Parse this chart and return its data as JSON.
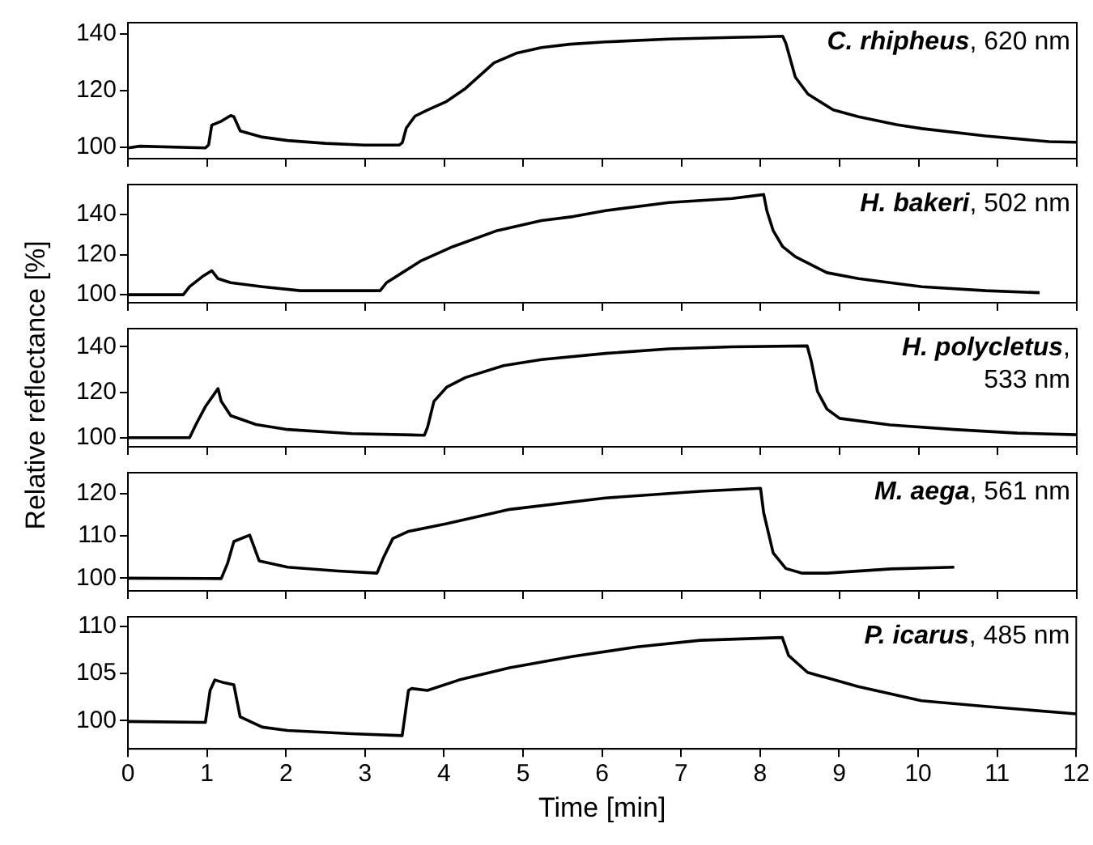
{
  "chart_data": [
    {
      "type": "line",
      "color": "#000000",
      "annotations": [
        "C. rhipheus, 620 nm"
      ],
      "xlim": [
        0,
        12
      ],
      "xticks": [
        0,
        1,
        2,
        3,
        4,
        5,
        6,
        7,
        8,
        9,
        10,
        11,
        12
      ],
      "ylim": [
        96,
        144
      ],
      "yticks": [
        100,
        120,
        140
      ],
      "tick_labels": "y",
      "x": [
        0,
        0.15,
        0.98,
        1.02,
        1.06,
        1.18,
        1.3,
        1.34,
        1.42,
        1.7,
        2.02,
        2.5,
        2.99,
        3.43,
        3.47,
        3.52,
        3.63,
        3.79,
        4.03,
        4.27,
        4.43,
        4.63,
        4.91,
        5.23,
        5.59,
        6.04,
        6.84,
        7.64,
        8.04,
        8.28,
        8.32,
        8.44,
        8.6,
        8.92,
        9.24,
        9.72,
        10.04,
        10.85,
        11.65,
        12
      ],
      "values": [
        99.8,
        100.4,
        99.8,
        100.8,
        107.8,
        109.2,
        111.2,
        110.8,
        105.8,
        103.6,
        102.4,
        101.4,
        100.8,
        100.8,
        101.6,
        106.8,
        111,
        113.2,
        116.2,
        120.8,
        124.8,
        129.8,
        133.2,
        135.2,
        136.4,
        137.2,
        138.2,
        138.8,
        139,
        139.2,
        136.8,
        124.8,
        118.8,
        113.2,
        110.8,
        108,
        106.6,
        104,
        102,
        101.8
      ]
    },
    {
      "type": "line",
      "color": "#000000",
      "annotations": [
        "H. bakeri, 502 nm"
      ],
      "xlim": [
        0,
        12
      ],
      "xticks": [
        0,
        1,
        2,
        3,
        4,
        5,
        6,
        7,
        8,
        9,
        10,
        11,
        12
      ],
      "ylim": [
        96,
        155
      ],
      "yticks": [
        100,
        120,
        140
      ],
      "tick_labels": "y",
      "x": [
        0,
        0.7,
        0.78,
        0.94,
        1.06,
        1.14,
        1.3,
        1.7,
        2.18,
        3.19,
        3.27,
        3.47,
        3.71,
        4.11,
        4.67,
        5.23,
        5.63,
        6.04,
        6.84,
        7.64,
        8.04,
        8.08,
        8.16,
        8.28,
        8.44,
        8.84,
        9.24,
        10.04,
        10.85,
        11.53
      ],
      "values": [
        100,
        100,
        104,
        109,
        112,
        108,
        106,
        104,
        102,
        102,
        106,
        111,
        117,
        124,
        132,
        137,
        139,
        142,
        146,
        148,
        150,
        142,
        132,
        124,
        119,
        111,
        108,
        104,
        102,
        101
      ]
    },
    {
      "type": "line",
      "color": "#000000",
      "annotations": [
        "H. polycletus, 533 nm"
      ],
      "ylabel": "Relative reflectance [%]",
      "xlim": [
        0,
        12
      ],
      "xticks": [
        0,
        1,
        2,
        3,
        4,
        5,
        6,
        7,
        8,
        9,
        10,
        11,
        12
      ],
      "ylim": [
        96,
        148
      ],
      "yticks": [
        100,
        120,
        140
      ],
      "tick_labels": "y",
      "x": [
        0,
        0.78,
        0.86,
        0.98,
        1.14,
        1.18,
        1.3,
        1.62,
        2.02,
        2.83,
        3.75,
        3.79,
        3.87,
        4.03,
        4.27,
        4.75,
        5.23,
        6.04,
        6.84,
        7.64,
        8.59,
        8.64,
        8.72,
        8.84,
        9,
        9.64,
        10.45,
        11.25,
        12
      ],
      "values": [
        100,
        100,
        105.8,
        113.7,
        121.6,
        116,
        109.7,
        105.8,
        103.6,
        101.8,
        101.1,
        104.7,
        116,
        122.2,
        126.5,
        131.7,
        134.4,
        137.1,
        139.1,
        140,
        140.4,
        133.9,
        120.4,
        112.6,
        108.5,
        105.6,
        103.6,
        102,
        101.3
      ]
    },
    {
      "type": "line",
      "color": "#000000",
      "annotations": [
        "M. aega, 561 nm"
      ],
      "xlim": [
        0,
        12
      ],
      "xticks": [
        0,
        1,
        2,
        3,
        4,
        5,
        6,
        7,
        8,
        9,
        10,
        11,
        12
      ],
      "ylim": [
        97,
        125
      ],
      "yticks": [
        100,
        110,
        120
      ],
      "tick_labels": "y",
      "x": [
        0,
        1.18,
        1.26,
        1.34,
        1.54,
        1.66,
        2.02,
        2.66,
        3.15,
        3.23,
        3.35,
        3.55,
        4.03,
        4.83,
        6.04,
        7.24,
        8,
        8.04,
        8.16,
        8.32,
        8.52,
        8.84,
        9.65,
        10.45
      ],
      "values": [
        100,
        99.9,
        103.5,
        108.7,
        110.2,
        104.1,
        102.6,
        101.7,
        101.2,
        104.8,
        109.4,
        111.1,
        112.9,
        116.3,
        119,
        120.6,
        121.3,
        115.5,
        106,
        102.3,
        101.2,
        101.2,
        102.2,
        102.6
      ]
    },
    {
      "type": "line",
      "color": "#000000",
      "annotations": [
        "P. icarus, 485 nm"
      ],
      "xlabel": "Time [min]",
      "xlim": [
        0,
        12
      ],
      "xticks": [
        0,
        1,
        2,
        3,
        4,
        5,
        6,
        7,
        8,
        9,
        10,
        11,
        12
      ],
      "ylim": [
        97,
        111
      ],
      "yticks": [
        100,
        105,
        110
      ],
      "x": [
        0,
        0.98,
        1.04,
        1.1,
        1.22,
        1.34,
        1.42,
        1.7,
        2.02,
        2.83,
        3.47,
        3.55,
        3.59,
        3.79,
        4.19,
        4.83,
        5.63,
        6.44,
        7.24,
        8.28,
        8.36,
        8.6,
        9.24,
        10.04,
        10.85,
        12
      ],
      "values": [
        99.9,
        99.8,
        103.2,
        104.3,
        104,
        103.8,
        100.4,
        99.3,
        98.95,
        98.6,
        98.4,
        103.2,
        103.4,
        103.2,
        104.3,
        105.6,
        106.8,
        107.8,
        108.5,
        108.8,
        106.9,
        105.1,
        103.6,
        102.1,
        101.5,
        100.7
      ]
    }
  ]
}
